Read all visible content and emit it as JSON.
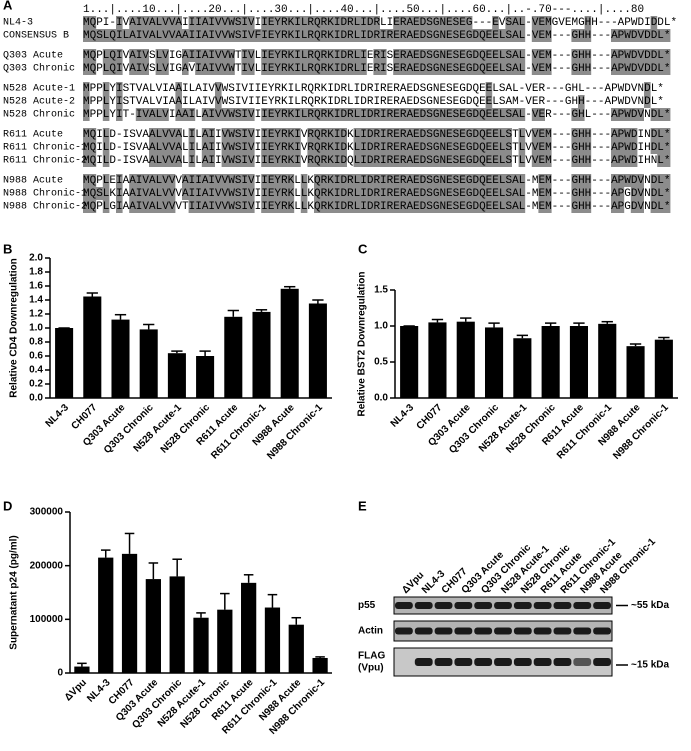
{
  "alignment": {
    "panel": "A",
    "ruler": "1...|....10...|....20...|....30...|....40...|....50...|....60...|..-.70---....|....80",
    "groups": [
      [
        {
          "name": "NL4-3",
          "seq": "MQPI-IVAIVALVVAIIIAIVVWSIVIIEYRKILRQRKIDRLIDRLIERAEDSGNESEG---EVSAL-VEMGVEMGHH---APWDIDDL*"
        },
        {
          "name": "CONSENSUS B",
          "seq": "MQSLQILAIVALVVAAIIAIVVWSIVFIEYRKILRQRKIDRLIDRIRERAEDSGNESEGDQEELSAL-VEM---GHH---APWDVDDL*"
        }
      ],
      [
        {
          "name": "Q303 Acute",
          "seq": "MQPLQIVAIVSLVIGAIIAIVVWTIVLIEYRKILRQRKIDRLIERISERAEDSGNESEGDQEELSAL-VEM---GHH---APWDVDDL*"
        },
        {
          "name": "Q303 Chronic",
          "seq": "MQPLQIVAIVSLVIGAVIAIVVWTIVLIEYRKILRQRKIDRLIERISERAEDSGNESEGDQEELSAL-VEM---GHH---APWDVDDL*"
        }
      ],
      [
        {
          "name": "N528 Acute-1",
          "seq": "MPPLYISTVALVIAAILAIVVWSIVIIEYRKILRQRKIDRLIDRIRERAEDSGNESEGDQEELSAL-VER---GHL---APWDVNDL*"
        },
        {
          "name": "N528 Acute-2",
          "seq": "MPPLYISTVALVIAAILAIVVWSIVIIEYRKILRQRKIDRLIDRIRERAEDSGNESEGDQEELSAM-VER---GHH---APWDVNDL*"
        },
        {
          "name": "N528 Chronic",
          "seq": "MPPLYIT-IVALVIAAILAIVVWSIVIIEYRKILRQRKIDRLIDRIRERAEDSGNESEGDQEELSAL-VER---GHL---APWDVNDL*"
        }
      ],
      [
        {
          "name": "R611 Acute",
          "seq": "MQILD-ISVAALVVALILAIIVWSIVIIEYRKIVRQRKIDKLIDRIRERAEDSGNESEGDQEELSTLVVEM---GHH---APWDINDL*"
        },
        {
          "name": "R611 Chronic-1",
          "seq": "MQILD-ISVAALVVALILAIIVWSIVIIEYRKIVRQRKIDKLIDRIRERAEDSGNESEGDQEELSTLVVEM---GHH---APWDIHDL*"
        },
        {
          "name": "R611 Chronic-2",
          "seq": "MQILD-ISVAALVVALILAIIVWSIVIIEYRKIVRQRKIDQLIDRIRERAEDSGNESEGDQEELSTLVVEM---GHH---APWDIHNL*"
        }
      ],
      [
        {
          "name": "N988 Acute",
          "seq": "MQPLEIAAIVALVVVAIIAIVVWSIVIIEYRKLLKQRKIDRLIDRIRERAEDSGNESEGDQEELSAL-MEM---GHH---APWDVNDL*"
        },
        {
          "name": "N988 Chronic-1",
          "seq": "MQSLKIAAIVALVVVAIIAIVVWSIVIIEYRKLLKQRKIDRLIDRIRERAEDSGNESEGDQEELSAL-MEM---GHH---APGDVNDL*"
        },
        {
          "name": "N988 Chronic-2",
          "seq": "MQPLGIAAIVALVVVTIIAIVVWSIVIIEYRKLLKQRKIDRLIDRIRERAEDSGNESEGDQEELSAL-MEM---GHH---APGDVNDL*"
        }
      ]
    ]
  },
  "chart_data": [
    {
      "type": "bar",
      "panel": "B",
      "ylabel": "Relative CD4 Downregulation",
      "color": "#000000",
      "categories": [
        "NL4-3",
        "CH077",
        "Q303 Acute",
        "Q303 Chronic",
        "N528 Acute-1",
        "N528 Chronic",
        "R611 Acute",
        "R611 Chronic-1",
        "N988 Acute",
        "N988 Chronic-1"
      ],
      "values": [
        1.0,
        1.45,
        1.12,
        0.98,
        0.64,
        0.6,
        1.16,
        1.23,
        1.56,
        1.35
      ],
      "errors": [
        0,
        0.05,
        0.07,
        0.07,
        0.03,
        0.07,
        0.09,
        0.03,
        0.03,
        0.05
      ],
      "ylim": [
        0,
        2
      ],
      "yticks": [
        {
          "value": 0,
          "label": "0.0"
        },
        0.2,
        0.4,
        0.6,
        0.8,
        {
          "value": 1,
          "label": "1.0"
        },
        1.2,
        1.4,
        1.6,
        1.8,
        {
          "value": 2,
          "label": "2.0"
        }
      ]
    },
    {
      "type": "bar",
      "panel": "C",
      "ylabel": "Relative BST2 Downregulation",
      "color": "#000000",
      "categories": [
        "NL4-3",
        "CH077",
        "Q303 Acute",
        "Q303 Chronic",
        "N528 Acute-1",
        "N528 Chronic",
        "R611 Acute",
        "R611 Chronic-1",
        "N988 Acute",
        "N988 Chronic-1"
      ],
      "values": [
        1.0,
        1.05,
        1.06,
        0.98,
        0.83,
        1.0,
        1.0,
        1.03,
        0.72,
        0.81
      ],
      "errors": [
        0,
        0.04,
        0.05,
        0.06,
        0.04,
        0.04,
        0.04,
        0.03,
        0.03,
        0.03
      ],
      "ylim": [
        0,
        1.5
      ],
      "yticks": [
        {
          "value": 0,
          "label": "0.0"
        },
        0.5,
        {
          "value": 1,
          "label": "1.0"
        },
        1.5
      ]
    },
    {
      "type": "bar",
      "panel": "D",
      "ylabel": "Supernatant p24 (pg/ml)",
      "color": "#000000",
      "categories": [
        "ΔVpu",
        "NL4-3",
        "CH077",
        "Q303 Acute",
        "Q303 Chronic",
        "N528 Acute-1",
        "N528 Chronic",
        "R611 Acute",
        "R611 Chronic-1",
        "N988 Acute",
        "N988 Chronic-1"
      ],
      "values": [
        12000,
        215000,
        222000,
        175000,
        180000,
        103000,
        118000,
        168000,
        122000,
        90000,
        28000
      ],
      "errors": [
        6000,
        14000,
        38000,
        30000,
        32000,
        9000,
        30000,
        15000,
        24000,
        13000,
        2000
      ],
      "ylim": [
        0,
        300000
      ],
      "yticks": [
        0,
        100000,
        200000,
        300000
      ]
    }
  ],
  "blot": {
    "panel": "E",
    "lanes": [
      "ΔVpu",
      "NL4-3",
      "CH077",
      "Q303 Acute",
      "Q303 Chronic",
      "N528 Acute-1",
      "N528 Chronic",
      "R611 Acute",
      "R611 Chronic-1",
      "N988 Acute",
      "N988 Chronic-1"
    ],
    "rows": [
      {
        "label": [
          "p55"
        ],
        "marker": "~55 kDa"
      },
      {
        "label": [
          "Actin"
        ]
      },
      {
        "label": [
          "FLAG",
          "(Vpu)"
        ],
        "marker": "~15 kDa"
      }
    ]
  }
}
